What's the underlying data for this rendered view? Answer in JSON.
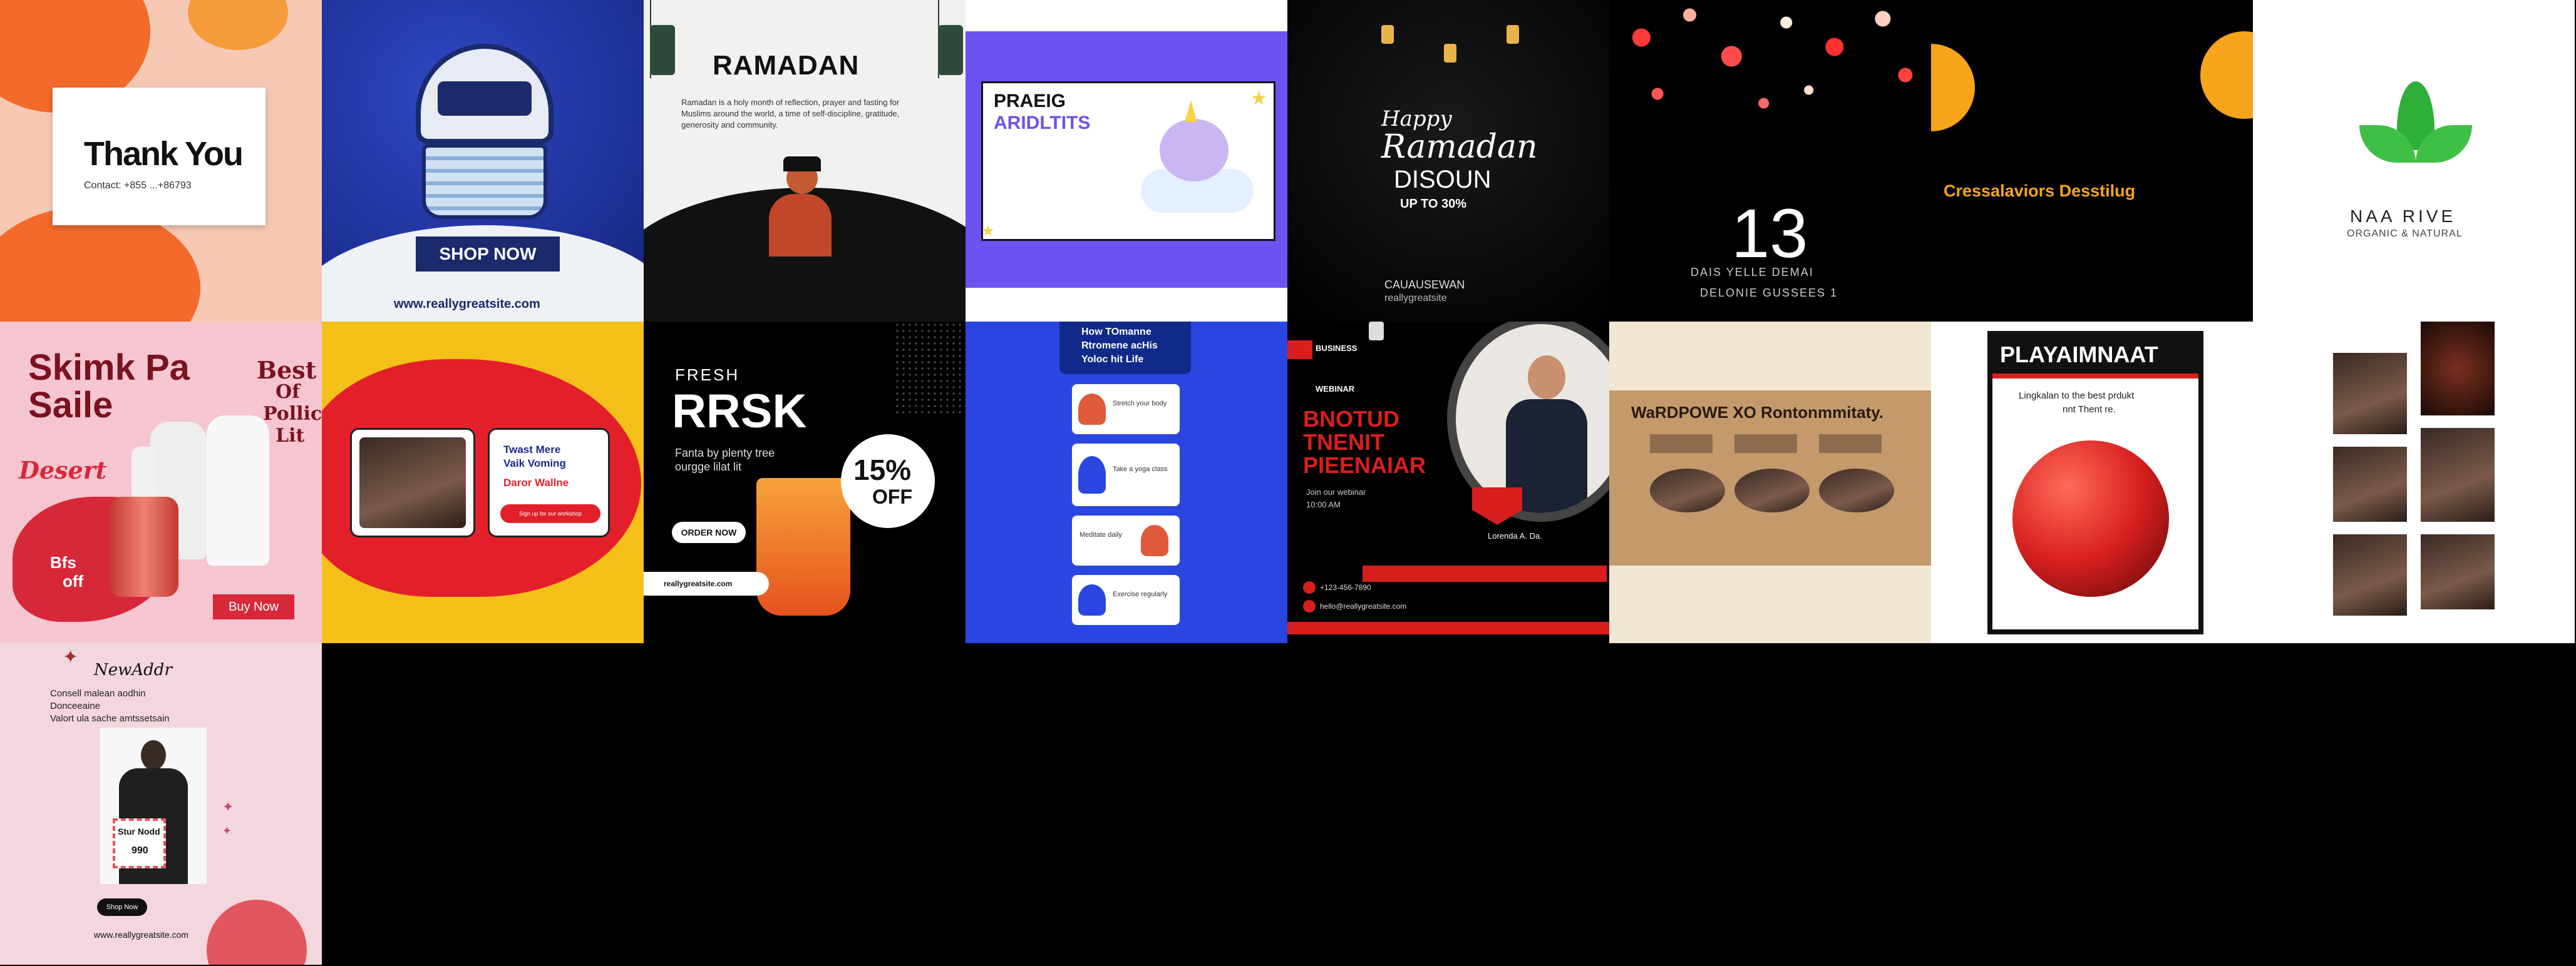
{
  "tiles": {
    "thank_you": {
      "title": "Thank You",
      "contact": "Contact: +855 ...+86793",
      "colors": {
        "bg": "#f7c9b5",
        "accent": "#f26b2b"
      }
    },
    "shop_now": {
      "button": "SHOP NOW",
      "url": "www.reallygreatsite.com",
      "colors": {
        "bg": "#1b2f9a",
        "accent": "#1a2a6a"
      }
    },
    "ramadan": {
      "title": "RAMADAN",
      "body": "Ramadan is a holy month of reflection, prayer and fasting for Muslims around the world, a time of self-discipline, gratitude, generosity and community.",
      "colors": {
        "bg": "#f1f1ef",
        "ground": "#111111"
      }
    },
    "preschool": {
      "title_line1": "PRAEIG",
      "title_line2": "ARIDLTITS",
      "colors": {
        "bg": "#6c52f0",
        "card": "#ffffff"
      }
    },
    "happy_ramadan": {
      "line1": "Happy",
      "line2": "Ramadan",
      "line3": "DISOUN",
      "line4": "UP TO 30%",
      "footer1": "CAUAUSEWAN",
      "footer2": "reallygreatsite"
    },
    "countdown": {
      "number": "13",
      "line1": "DAIS YELLE DEMAI",
      "line2": "DELONIE GUSSEES 1"
    },
    "black_orange": {
      "text": "Cressalaviors Desstilug",
      "colors": {
        "circle": "#f6a51b"
      }
    },
    "nature": {
      "title": "NAA RIVE",
      "subtitle": "ORGANIC & NATURAL",
      "colors": {
        "leaf": "#2fae3a"
      }
    },
    "skincare": {
      "title_line1": "Skimk Pa",
      "title_line2": "Saile",
      "side1": "Best",
      "side2": "Of",
      "side3": "Pollic",
      "side4": "Lit",
      "script1": "Desert",
      "badge1": "Bfs",
      "badge2": "off",
      "button": "Buy Now",
      "colors": {
        "bg": "#f5c6cf",
        "accent": "#d7283a"
      }
    },
    "yellow_red": {
      "card_line1": "Twast Mere",
      "card_line2": "Vaik Voming",
      "card_line3": "Daror Wallne",
      "card_button": "Sign up for our workshop",
      "colors": {
        "bg": "#f5c019",
        "blob": "#e3202a"
      }
    },
    "juice": {
      "label": "FRESH",
      "title": "RRSK",
      "sub1": "Fanta by plenty tree",
      "sub2": "ourgge lilat lit",
      "discount": "15%",
      "discount_label": "OFF",
      "button": "ORDER NOW",
      "url": "reallygreatsite.com"
    },
    "howto": {
      "header_line1": "How TOmanne",
      "header_line2": "Rtromene acHis",
      "header_line3": "Yoloc hit Life",
      "steps": [
        "Stretch your body",
        "Take a yoga class",
        "Meditate daily",
        "Exercise regularly"
      ],
      "colors": {
        "bg": "#2b46e0",
        "header": "#0f2a8a"
      }
    },
    "business": {
      "tag": "BUSINESS",
      "subtag": "WEBINAR",
      "title_line1": "BNOTUD",
      "title_line2": "TNENIT",
      "title_line3": "PIEENAIAR",
      "info1": "Join our webinar",
      "info2": "10:00 AM",
      "name": "Lorenda A. Da.",
      "phone": "+123-456-7890",
      "email": "hello@reallygreatsite.com",
      "colors": {
        "accent": "#d91e1e"
      }
    },
    "wordpress": {
      "title": "WaRDPOWE XO Rontonmmitaty.",
      "colors": {
        "bg": "#c49a6c",
        "frame": "#f3e7d3"
      }
    },
    "playa": {
      "title": "PLAYAIMNAAT",
      "sub1": "Lingkalan to the best prdukt",
      "sub2": "nnt Thent re.",
      "colors": {
        "accent": "#d81f1f"
      }
    },
    "collage": {},
    "newdrop": {
      "title": "NewAddr",
      "line1": "Consell malean aodhin",
      "line2": "Donceeaine",
      "line3": "Valort ula sache amtssetsain",
      "sticker1": "Stur Nodd",
      "sticker2": "990",
      "button": "Shop Now",
      "url": "www.reallygreatsite.com",
      "colors": {
        "bg": "#f4d7de",
        "accent": "#e2575f"
      }
    }
  }
}
